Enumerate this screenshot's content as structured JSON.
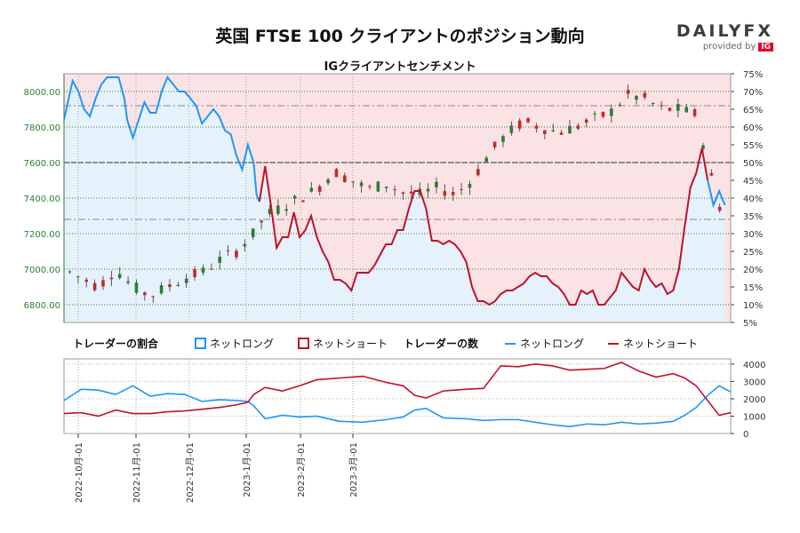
{
  "title": "英国 FTSE 100 クライアントのポジション動向",
  "subtitle": "IGクライアントセンチメント",
  "brand": {
    "name": "DAILYFX",
    "provided_by": "provided by",
    "ig": "IG"
  },
  "colors": {
    "long": "#2196f3",
    "short": "#c0102a",
    "long_bg": "#e6f2fb",
    "short_bg": "#fbe3e5",
    "candle_up": "#2e7d32",
    "candle_down": "#c62828",
    "axis_green": "#2e7d32"
  },
  "chart_data": [
    {
      "type": "candlestick",
      "name": "price",
      "y_left_ticks": [
        "6800.00",
        "7000.00",
        "7200.00",
        "7400.00",
        "7600.00",
        "7800.00",
        "8000.00"
      ],
      "ylim_left": [
        6700,
        8100
      ],
      "y_right_ticks": [
        "5%",
        "10%",
        "15%",
        "20%",
        "25%",
        "30%",
        "35%",
        "40%",
        "45%",
        "50%",
        "55%",
        "60%",
        "65%",
        "70%",
        "75%"
      ],
      "ylim_right": [
        5,
        75
      ],
      "reference_lines": [
        50,
        34,
        66
      ],
      "dates": [
        "2022-10月-01",
        "2022-11月-01",
        "2022-12月-01",
        "2023-1月-01",
        "2023-2月-01",
        "2023-3月-01"
      ],
      "series_net_long_pct": [
        [
          0,
          62
        ],
        [
          3,
          73
        ],
        [
          5,
          70
        ],
        [
          7,
          65
        ],
        [
          9,
          63
        ],
        [
          11,
          68
        ],
        [
          13,
          72
        ],
        [
          15,
          74
        ],
        [
          17,
          74
        ],
        [
          19,
          74
        ],
        [
          21,
          68
        ],
        [
          22,
          62
        ],
        [
          24,
          57
        ],
        [
          26,
          62
        ],
        [
          28,
          67
        ],
        [
          30,
          64
        ],
        [
          32,
          64
        ],
        [
          34,
          70
        ],
        [
          36,
          74
        ],
        [
          38,
          72
        ],
        [
          40,
          70
        ],
        [
          42,
          70
        ],
        [
          44,
          68
        ],
        [
          46,
          66
        ],
        [
          48,
          61
        ],
        [
          50,
          63
        ],
        [
          52,
          65
        ],
        [
          54,
          63
        ],
        [
          56,
          59
        ],
        [
          58,
          58
        ],
        [
          60,
          52
        ],
        [
          62,
          48
        ],
        [
          64,
          55
        ],
        [
          66,
          50
        ],
        [
          67,
          41
        ],
        [
          68,
          39
        ]
      ],
      "series_net_short_pct_segments": [
        [
          [
            68,
            39
          ],
          [
            70,
            49
          ],
          [
            72,
            38
          ],
          [
            74,
            26
          ],
          [
            76,
            29
          ],
          [
            78,
            29
          ],
          [
            80,
            36
          ],
          [
            82,
            29
          ],
          [
            84,
            31
          ],
          [
            86,
            35
          ],
          [
            88,
            29
          ],
          [
            90,
            25
          ],
          [
            92,
            22
          ],
          [
            94,
            17
          ],
          [
            96,
            17
          ],
          [
            98,
            16
          ],
          [
            100,
            14
          ],
          [
            102,
            19
          ],
          [
            104,
            19
          ],
          [
            106,
            19
          ],
          [
            108,
            21
          ],
          [
            110,
            24
          ],
          [
            112,
            27
          ],
          [
            114,
            27
          ],
          [
            116,
            31
          ],
          [
            118,
            31
          ],
          [
            120,
            37
          ],
          [
            122,
            42
          ],
          [
            124,
            42
          ],
          [
            126,
            37
          ],
          [
            128,
            28
          ],
          [
            130,
            28
          ],
          [
            132,
            27
          ],
          [
            134,
            28
          ],
          [
            136,
            27
          ],
          [
            138,
            25
          ],
          [
            140,
            22
          ],
          [
            142,
            15
          ],
          [
            144,
            11
          ],
          [
            146,
            11
          ],
          [
            148,
            10
          ],
          [
            150,
            11
          ],
          [
            152,
            13
          ],
          [
            154,
            14
          ],
          [
            156,
            14
          ],
          [
            158,
            15
          ],
          [
            160,
            16
          ],
          [
            162,
            18
          ],
          [
            164,
            19
          ],
          [
            166,
            18
          ],
          [
            168,
            18
          ],
          [
            170,
            16
          ],
          [
            172,
            15
          ],
          [
            174,
            13
          ],
          [
            176,
            10
          ],
          [
            178,
            10
          ],
          [
            180,
            14
          ],
          [
            182,
            13
          ],
          [
            184,
            14
          ],
          [
            186,
            10
          ],
          [
            188,
            10
          ],
          [
            190,
            12
          ],
          [
            192,
            14
          ],
          [
            194,
            19
          ],
          [
            196,
            17
          ],
          [
            198,
            15
          ],
          [
            200,
            14
          ],
          [
            202,
            20
          ],
          [
            204,
            17
          ],
          [
            206,
            15
          ],
          [
            208,
            16
          ],
          [
            210,
            13
          ],
          [
            212,
            14
          ],
          [
            214,
            20
          ],
          [
            216,
            32
          ],
          [
            218,
            43
          ],
          [
            220,
            47
          ],
          [
            222,
            54
          ],
          [
            224,
            45
          ]
        ],
        [
          [
            224,
            45
          ],
          [
            226,
            38
          ],
          [
            228,
            42
          ],
          [
            230,
            38
          ]
        ]
      ]
    },
    {
      "type": "line",
      "name": "trader_count",
      "y_ticks": [
        "0",
        "1000",
        "2000",
        "3000",
        "4000"
      ],
      "ylim": [
        0,
        4300
      ],
      "series_long": [
        [
          0,
          1900
        ],
        [
          6,
          2550
        ],
        [
          12,
          2500
        ],
        [
          18,
          2250
        ],
        [
          24,
          2750
        ],
        [
          30,
          2150
        ],
        [
          36,
          2300
        ],
        [
          42,
          2250
        ],
        [
          48,
          1850
        ],
        [
          54,
          1950
        ],
        [
          60,
          1900
        ],
        [
          64,
          1850
        ],
        [
          66,
          1600
        ],
        [
          70,
          850
        ],
        [
          76,
          1050
        ],
        [
          82,
          950
        ],
        [
          88,
          1000
        ],
        [
          96,
          700
        ],
        [
          104,
          650
        ],
        [
          112,
          800
        ],
        [
          118,
          950
        ],
        [
          122,
          1350
        ],
        [
          126,
          1450
        ],
        [
          132,
          900
        ],
        [
          140,
          850
        ],
        [
          146,
          750
        ],
        [
          152,
          800
        ],
        [
          158,
          800
        ],
        [
          164,
          650
        ],
        [
          170,
          500
        ],
        [
          176,
          400
        ],
        [
          182,
          550
        ],
        [
          188,
          500
        ],
        [
          194,
          650
        ],
        [
          200,
          550
        ],
        [
          206,
          600
        ],
        [
          212,
          700
        ],
        [
          216,
          1050
        ],
        [
          220,
          1500
        ],
        [
          224,
          2200
        ],
        [
          228,
          2750
        ],
        [
          232,
          2400
        ]
      ],
      "series_short": [
        [
          0,
          1150
        ],
        [
          6,
          1200
        ],
        [
          12,
          1000
        ],
        [
          18,
          1350
        ],
        [
          24,
          1150
        ],
        [
          30,
          1150
        ],
        [
          36,
          1250
        ],
        [
          42,
          1300
        ],
        [
          48,
          1400
        ],
        [
          54,
          1500
        ],
        [
          60,
          1650
        ],
        [
          64,
          1800
        ],
        [
          66,
          2250
        ],
        [
          70,
          2650
        ],
        [
          76,
          2450
        ],
        [
          82,
          2750
        ],
        [
          88,
          3100
        ],
        [
          96,
          3200
        ],
        [
          104,
          3300
        ],
        [
          112,
          2950
        ],
        [
          118,
          2750
        ],
        [
          122,
          2200
        ],
        [
          126,
          2050
        ],
        [
          132,
          2450
        ],
        [
          140,
          2550
        ],
        [
          146,
          2600
        ],
        [
          152,
          3900
        ],
        [
          158,
          3850
        ],
        [
          164,
          4000
        ],
        [
          170,
          3900
        ],
        [
          176,
          3650
        ],
        [
          182,
          3700
        ],
        [
          188,
          3750
        ],
        [
          194,
          4100
        ],
        [
          200,
          3600
        ],
        [
          206,
          3250
        ],
        [
          212,
          3450
        ],
        [
          216,
          3200
        ],
        [
          220,
          2750
        ],
        [
          224,
          1900
        ],
        [
          228,
          1050
        ],
        [
          232,
          1200
        ]
      ]
    }
  ],
  "legend": {
    "pct_title": "トレーダーの割合",
    "pct_long": "ネットロング",
    "pct_short": "ネットショート",
    "count_title": "トレーダーの数",
    "count_long": "ネットロング",
    "count_short": "ネットショート"
  }
}
